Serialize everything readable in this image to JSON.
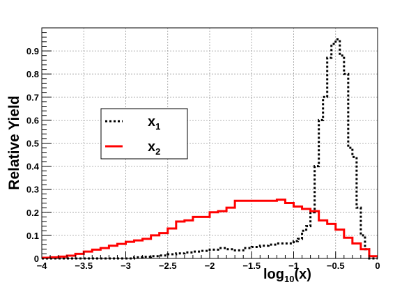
{
  "chart_data": {
    "type": "line",
    "style": "step-histogram",
    "xlabel_main": "log",
    "xlabel_sub": "10",
    "xlabel_tail": "(x)",
    "ylabel": "Relative Yield",
    "xlim": [
      -4,
      0
    ],
    "ylim": [
      0,
      1.0
    ],
    "grid": true,
    "legend_position": "center-left",
    "x_ticks": [
      -4,
      -3.5,
      -3,
      -2.5,
      -2,
      -1.5,
      -1,
      -0.5,
      0
    ],
    "x_tick_labels": [
      "−4",
      "−3.5",
      "−3",
      "−2.5",
      "−2",
      "−1.5",
      "−1",
      "−0.5",
      "0"
    ],
    "y_ticks": [
      0,
      0.1,
      0.2,
      0.3,
      0.4,
      0.5,
      0.6,
      0.7,
      0.8,
      0.9
    ],
    "y_tick_labels": [
      "0",
      "0.1",
      "0.2",
      "0.3",
      "0.4",
      "0.5",
      "0.6",
      "0.7",
      "0.8",
      "0.9"
    ],
    "bin_edges": [
      -4.0,
      -3.9,
      -3.8,
      -3.7,
      -3.6,
      -3.5,
      -3.4,
      -3.3,
      -3.2,
      -3.1,
      -3.0,
      -2.9,
      -2.8,
      -2.7,
      -2.6,
      -2.5,
      -2.4,
      -2.3,
      -2.2,
      -2.1,
      -2.0,
      -1.9,
      -1.8,
      -1.7,
      -1.6,
      -1.5,
      -1.4,
      -1.3,
      -1.2,
      -1.1,
      -1.0,
      -0.95,
      -0.9,
      -0.85,
      -0.8,
      -0.75,
      -0.7,
      -0.65,
      -0.6,
      -0.55,
      -0.5,
      -0.45,
      -0.4,
      -0.35,
      -0.3,
      -0.25,
      -0.2,
      -0.15,
      -0.1,
      -0.05,
      0.0
    ],
    "series": [
      {
        "name": "x",
        "name_sub": "1",
        "color": "#000000",
        "line_style": "dotted",
        "values": [
          0.0,
          0.0,
          0.0,
          0.0,
          0.0,
          0.0,
          0.0,
          0.0,
          0.0,
          0.0,
          0.0,
          0.005,
          0.007,
          0.01,
          0.013,
          0.018,
          0.022,
          0.026,
          0.03,
          0.033,
          0.038,
          0.045,
          0.04,
          0.035,
          0.045,
          0.05,
          0.055,
          0.06,
          0.065,
          0.065,
          0.075,
          0.085,
          0.12,
          0.14,
          0.2,
          0.4,
          0.6,
          0.7,
          0.87,
          0.93,
          0.95,
          0.88,
          0.8,
          0.48,
          0.44,
          0.22,
          0.1,
          0.04,
          0.0,
          0.0
        ]
      },
      {
        "name": "x",
        "name_sub": "2",
        "color": "#ff0000",
        "line_style": "solid",
        "values": [
          0.003,
          0.005,
          0.008,
          0.012,
          0.02,
          0.03,
          0.038,
          0.045,
          0.055,
          0.063,
          0.072,
          0.078,
          0.085,
          0.1,
          0.11,
          0.13,
          0.16,
          0.165,
          0.18,
          0.18,
          0.2,
          0.205,
          0.22,
          0.25,
          0.25,
          0.25,
          0.25,
          0.25,
          0.255,
          0.24,
          0.225,
          0.225,
          0.215,
          0.215,
          0.205,
          0.205,
          0.165,
          0.165,
          0.15,
          0.15,
          0.125,
          0.125,
          0.09,
          0.09,
          0.065,
          0.065,
          0.04,
          0.04,
          0.01,
          0.01
        ]
      }
    ]
  }
}
